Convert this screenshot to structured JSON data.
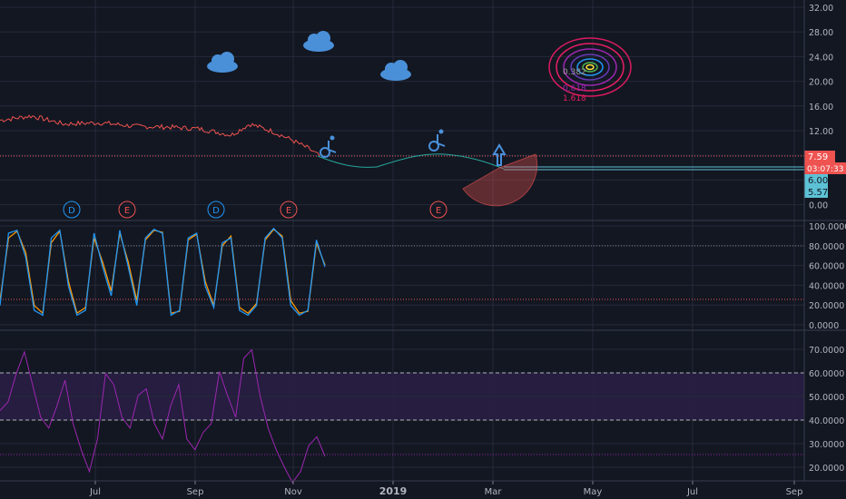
{
  "colors": {
    "background": "#131722",
    "grid": "#242a3a",
    "axis_text": "#b2b5be",
    "candle_up": "#26a69a",
    "candle_down": "#ef5350",
    "price_label_red": "#ef5350",
    "price_label_cyan": "#5dc1d5",
    "stoch_k": "#2196f3",
    "stoch_d": "#ff9800",
    "rsi_line": "#9c27b0",
    "rsi_band": "#2a1f45",
    "icon_blue": "#4a90d9"
  },
  "x_axis": {
    "labels": [
      "Jul",
      "Sep",
      "Nov",
      "2019",
      "Mar",
      "May",
      "Jul",
      "Sep"
    ]
  },
  "price_panel": {
    "tick_labels": [
      "32.00",
      "28.00",
      "24.00",
      "20.00",
      "16.00",
      "12.00",
      "8.00",
      "4.00",
      "0.00"
    ],
    "price_label": "7.59",
    "countdown_label": "03:07:33",
    "cyan_label_1": "6.00",
    "cyan_label_2": "5.57",
    "event_markers": [
      "D",
      "E",
      "D",
      "E",
      "E"
    ],
    "fib_circle_labels": [
      "0.382",
      "0.618",
      "1.618"
    ]
  },
  "stoch_panel": {
    "tick_labels": [
      "100.0000",
      "80.0000",
      "60.0000",
      "40.0000",
      "20.0000",
      "0.0000"
    ]
  },
  "rsi_panel": {
    "tick_labels": [
      "70.0000",
      "60.0000",
      "50.0000",
      "40.0000",
      "30.0000",
      "20.0000"
    ]
  },
  "chart_data": [
    {
      "type": "line",
      "panel": "price",
      "x": [
        "2018-05",
        "2018-06",
        "2018-07",
        "2018-08",
        "2018-09",
        "2018-10",
        "2018-11-01",
        "2018-11-10"
      ],
      "series": [
        {
          "values": [
            13.8,
            13.3,
            13.0,
            12.8,
            12.3,
            12.2,
            10.3,
            7.5
          ]
        }
      ],
      "ylim": [
        0,
        32
      ]
    },
    {
      "type": "line",
      "panel": "stochastic",
      "series": [
        {
          "values": [
            20,
            95,
            98,
            70,
            15,
            10,
            90,
            98,
            40,
            10,
            15,
            95,
            60,
            30,
            98,
            60,
            20,
            90,
            99,
            95,
            10,
            15,
            90,
            95,
            40,
            18,
            85,
            90,
            15,
            10,
            20,
            90,
            100,
            90,
            20,
            10,
            15,
            88,
            60
          ]
        },
        {
          "values": [
            25,
            90,
            97,
            75,
            20,
            12,
            85,
            97,
            45,
            12,
            18,
            90,
            65,
            35,
            95,
            65,
            25,
            88,
            98,
            96,
            12,
            14,
            88,
            94,
            45,
            20,
            82,
            92,
            18,
            12,
            22,
            88,
            99,
            92,
            25,
            12,
            14,
            85,
            62
          ]
        }
      ],
      "ylim": [
        0,
        100
      ]
    },
    {
      "type": "line",
      "panel": "rsi",
      "series": [
        {
          "values": [
            48,
            52,
            65,
            75,
            60,
            45,
            40,
            50,
            62,
            42,
            30,
            20,
            35,
            65,
            60,
            45,
            40,
            55,
            58,
            42,
            35,
            50,
            60,
            35,
            30,
            38,
            42,
            66,
            55,
            45,
            72,
            76,
            55,
            40,
            30,
            22,
            15,
            20,
            32,
            36,
            27
          ]
        }
      ],
      "ylim": [
        15,
        75
      ]
    }
  ]
}
